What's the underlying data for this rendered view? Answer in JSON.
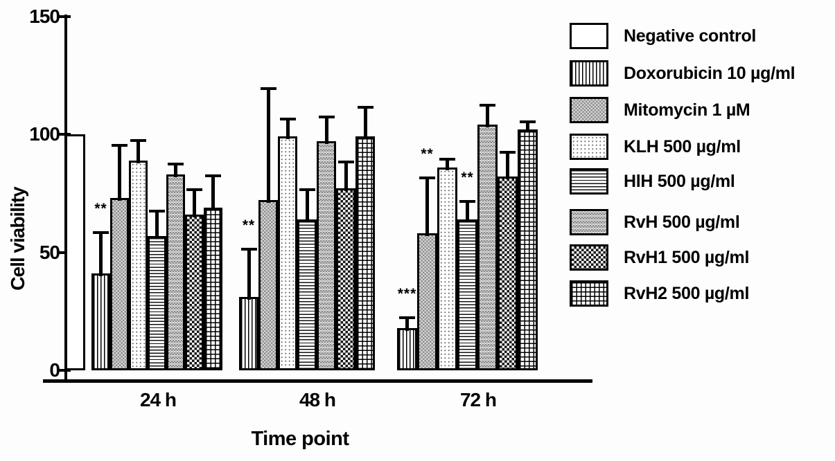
{
  "figure": {
    "ylabel": "Cell viability",
    "xlabel": "Time point"
  },
  "chart_data": {
    "type": "bar",
    "title": "",
    "ylabel": "Cell viability",
    "xlabel": "Time point",
    "ylim": [
      0,
      150
    ],
    "y_ticks": [
      0,
      50,
      100,
      150
    ],
    "grid": false,
    "legend_position": "right",
    "error_bars": "upper, SD",
    "categories": [
      "24 h",
      "48 h",
      "72 h"
    ],
    "series": [
      {
        "name": "Negative control",
        "pattern": "solid-white",
        "values": [
          100,
          null,
          null
        ],
        "errors": [
          null,
          null,
          null
        ],
        "sig": [
          null,
          null,
          null
        ]
      },
      {
        "name": "Doxorubicin 10 µg/ml",
        "pattern": "vertical-stripes",
        "values": [
          41,
          31,
          18
        ],
        "errors": [
          18,
          21,
          5
        ],
        "sig": [
          "**",
          "**",
          "***"
        ]
      },
      {
        "name": "Mitomycin 1 µM",
        "pattern": "gray-checker",
        "values": [
          73,
          72,
          58
        ],
        "errors": [
          23,
          48,
          24
        ],
        "sig": [
          null,
          null,
          "**"
        ]
      },
      {
        "name": "KLH 500 µg/ml",
        "pattern": "light-dots",
        "values": [
          89,
          99,
          86
        ],
        "errors": [
          9,
          8,
          4
        ],
        "sig": [
          null,
          null,
          null
        ]
      },
      {
        "name": "HlH 500 µg/ml",
        "pattern": "horizontal-stripes",
        "values": [
          57,
          64,
          64
        ],
        "errors": [
          11,
          13,
          8
        ],
        "sig": [
          null,
          null,
          "**"
        ]
      },
      {
        "name": "RvH 500 µg/ml",
        "pattern": "gray-weave",
        "values": [
          83,
          97,
          104
        ],
        "errors": [
          5,
          11,
          9
        ],
        "sig": [
          null,
          null,
          null
        ]
      },
      {
        "name": "RvH1 500 µg/ml",
        "pattern": "dark-checkerboard",
        "values": [
          66,
          77,
          82
        ],
        "errors": [
          11,
          12,
          11
        ],
        "sig": [
          null,
          null,
          null
        ]
      },
      {
        "name": "RvH2 500 µg/ml",
        "pattern": "grid",
        "values": [
          69,
          99,
          102
        ],
        "errors": [
          14,
          13,
          4
        ],
        "sig": [
          null,
          null,
          null
        ]
      }
    ]
  },
  "legend": {
    "items": [
      {
        "label": "Negative control",
        "pattern": "solid-white"
      },
      {
        "label": "Doxorubicin 10 µg/ml",
        "pattern": "vertical-stripes"
      },
      {
        "label": "Mitomycin 1 µM",
        "pattern": "gray-checker"
      },
      {
        "label": "KLH 500  µg/ml",
        "pattern": "light-dots"
      },
      {
        "label": "HlH 500 µg/ml",
        "pattern": "horizontal-stripes"
      },
      {
        "label": "RvH 500  µg/ml",
        "pattern": "gray-weave"
      },
      {
        "label": "RvH1 500  µg/ml",
        "pattern": "dark-checkerboard"
      },
      {
        "label": "RvH2 500  µg/ml",
        "pattern": "grid"
      }
    ]
  }
}
